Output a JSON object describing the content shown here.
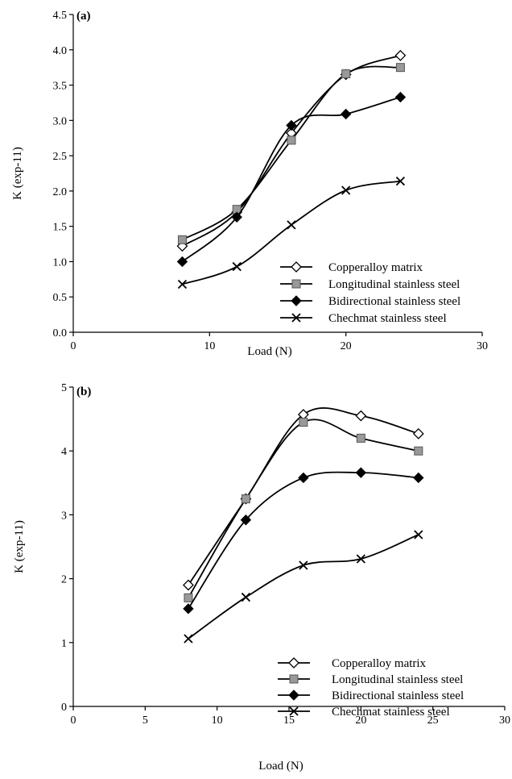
{
  "colors": {
    "line": "#000000",
    "copperalloy_marker_fill": "#ffffff",
    "longitudinal_marker_fill": "#999999",
    "bidirectional_marker_fill": "#000000",
    "chechmat_marker": "#000000"
  },
  "chart_data": [
    {
      "type": "line",
      "panel_label": "(a)",
      "xlabel": "Load (N)",
      "ylabel": "K (exp-11)",
      "xlim": [
        0,
        30
      ],
      "ylim": [
        0,
        4.5
      ],
      "xticks": [
        0,
        10,
        20,
        30
      ],
      "xtick_labels": [
        "0",
        "10",
        "20",
        "30"
      ],
      "yticks": [
        0,
        0.5,
        1.0,
        1.5,
        2.0,
        2.5,
        3.0,
        3.5,
        4.0,
        4.5
      ],
      "ytick_labels": [
        "0.0",
        "0.5",
        "1.0",
        "1.5",
        "2.0",
        "2.5",
        "3.0",
        "3.5",
        "4.0",
        "4.5"
      ],
      "grid": false,
      "legend_position": "bottom-right",
      "x": [
        8,
        12,
        16,
        20,
        24
      ],
      "series": [
        {
          "name": "Copperalloy matrix",
          "marker": "diamond-open",
          "values": [
            1.22,
            1.7,
            2.82,
            3.65,
            3.92
          ]
        },
        {
          "name": "Longitudinal stainless steel",
          "marker": "square-gray",
          "values": [
            1.31,
            1.74,
            2.72,
            3.66,
            3.75
          ]
        },
        {
          "name": "Bidirectional stainless steel",
          "marker": "diamond-filled",
          "values": [
            1.0,
            1.63,
            2.93,
            3.09,
            3.33
          ]
        },
        {
          "name": "Chechmat stainless steel",
          "marker": "cross",
          "values": [
            0.68,
            0.93,
            1.52,
            2.01,
            2.14
          ]
        }
      ]
    },
    {
      "type": "line",
      "panel_label": "(b)",
      "xlabel": "Load (N)",
      "ylabel": "K (exp-11)",
      "xlim": [
        0,
        30
      ],
      "ylim": [
        0,
        5
      ],
      "xticks": [
        0,
        5,
        10,
        15,
        20,
        25,
        30
      ],
      "xtick_labels": [
        "0",
        "5",
        "10",
        "15",
        "20",
        "25",
        "30"
      ],
      "yticks": [
        0,
        1,
        2,
        3,
        4,
        5
      ],
      "ytick_labels": [
        "0",
        "1",
        "2",
        "3",
        "4",
        "5"
      ],
      "grid": false,
      "legend_position": "bottom-right",
      "x": [
        8,
        12,
        16,
        20,
        24
      ],
      "series": [
        {
          "name": "Copperalloy matrix",
          "marker": "diamond-open",
          "values": [
            1.9,
            3.25,
            4.57,
            4.55,
            4.27
          ]
        },
        {
          "name": "Longitudinal stainless steel",
          "marker": "square-gray",
          "values": [
            1.7,
            3.25,
            4.45,
            4.2,
            4.0
          ]
        },
        {
          "name": "Bidirectional stainless steel",
          "marker": "diamond-filled",
          "values": [
            1.53,
            2.92,
            3.58,
            3.66,
            3.58
          ]
        },
        {
          "name": "Chechmat stainless steel",
          "marker": "cross",
          "values": [
            1.06,
            1.71,
            2.21,
            2.31,
            2.69
          ]
        }
      ]
    }
  ]
}
